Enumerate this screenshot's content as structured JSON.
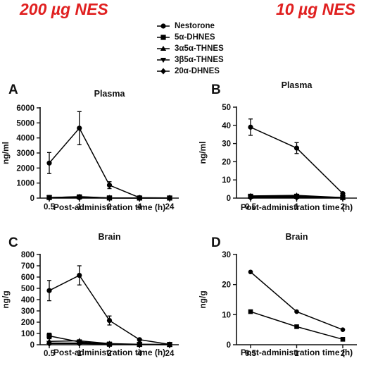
{
  "headers": {
    "left": "200 µg NES",
    "right": "10 µg NES"
  },
  "legend": [
    {
      "label": "Nestorone",
      "marker": "circle"
    },
    {
      "label": "5α-DHNES",
      "marker": "square"
    },
    {
      "label": "3α5α-THNES",
      "marker": "triangle-up"
    },
    {
      "label": "3β5α-THNES",
      "marker": "triangle-down"
    },
    {
      "label": "20α-DHNES",
      "marker": "diamond"
    }
  ],
  "colors": {
    "series": "#000000",
    "dose_header": "#e02020"
  },
  "chart_data": [
    {
      "panel": "A",
      "type": "line",
      "title": "Plasma",
      "xlabel": "Post-administration time (h)",
      "ylabel": "ng/ml",
      "categories": [
        "0.5",
        "1",
        "2",
        "4",
        "24"
      ],
      "yticks": [
        0,
        1000,
        2000,
        3000,
        4000,
        5000,
        6000
      ],
      "ylim": [
        0,
        6000
      ],
      "series": [
        {
          "name": "Nestorone",
          "marker": "circle",
          "values": [
            2330,
            4650,
            860,
            30,
            10
          ],
          "errors": [
            700,
            1100,
            230,
            10,
            0
          ]
        },
        {
          "name": "5α-DHNES",
          "marker": "square",
          "values": [
            40,
            80,
            10,
            5,
            5
          ],
          "errors": [
            0,
            0,
            0,
            0,
            0
          ]
        },
        {
          "name": "3α5α-THNES",
          "marker": "triangle-up",
          "values": [
            30,
            100,
            10,
            5,
            5
          ],
          "errors": [
            0,
            0,
            0,
            0,
            0
          ]
        },
        {
          "name": "3β5α-THNES",
          "marker": "triangle-down",
          "values": [
            20,
            40,
            5,
            5,
            5
          ],
          "errors": [
            0,
            0,
            0,
            0,
            0
          ]
        },
        {
          "name": "20α-DHNES",
          "marker": "diamond",
          "values": [
            10,
            20,
            5,
            5,
            5
          ],
          "errors": [
            0,
            0,
            0,
            0,
            0
          ]
        }
      ]
    },
    {
      "panel": "B",
      "type": "line",
      "title": "Plasma",
      "xlabel": "Post-administration time (h)",
      "ylabel": "ng/ml",
      "categories": [
        "0.5",
        "1",
        "2"
      ],
      "yticks": [
        0,
        10,
        20,
        30,
        40,
        50
      ],
      "ylim": [
        0,
        50
      ],
      "series": [
        {
          "name": "Nestorone",
          "marker": "circle",
          "values": [
            39,
            27.5,
            2.5
          ],
          "errors": [
            4.5,
            3,
            0
          ]
        },
        {
          "name": "5α-DHNES",
          "marker": "square",
          "values": [
            1,
            1,
            0.3
          ],
          "errors": [
            0,
            0,
            0
          ]
        },
        {
          "name": "3α5α-THNES",
          "marker": "triangle-up",
          "values": [
            1.2,
            1.5,
            0.3
          ],
          "errors": [
            0,
            0,
            0
          ]
        },
        {
          "name": "3β5α-THNES",
          "marker": "triangle-down",
          "values": [
            0.5,
            0.5,
            0.2
          ],
          "errors": [
            0,
            0,
            0
          ]
        },
        {
          "name": "20α-DHNES",
          "marker": "diamond",
          "values": [
            0.3,
            0.3,
            0.1
          ],
          "errors": [
            0,
            0,
            0
          ]
        }
      ]
    },
    {
      "panel": "C",
      "type": "line",
      "title": "Brain",
      "xlabel": "Post-administration time (h)",
      "ylabel": "ng/g",
      "categories": [
        "0.5",
        "1",
        "2",
        "4",
        "24"
      ],
      "yticks": [
        0,
        100,
        200,
        300,
        400,
        500,
        600,
        700,
        800
      ],
      "ylim": [
        0,
        800
      ],
      "series": [
        {
          "name": "Nestorone",
          "marker": "circle",
          "values": [
            480,
            615,
            215,
            45,
            3
          ],
          "errors": [
            90,
            85,
            40,
            5,
            0
          ]
        },
        {
          "name": "5α-DHNES",
          "marker": "square",
          "values": [
            78,
            25,
            5,
            3,
            2
          ],
          "errors": [
            25,
            0,
            0,
            0,
            0
          ]
        },
        {
          "name": "3α5α-THNES",
          "marker": "triangle-up",
          "values": [
            30,
            35,
            10,
            4,
            2
          ],
          "errors": [
            0,
            0,
            0,
            0,
            0
          ]
        },
        {
          "name": "3β5α-THNES",
          "marker": "triangle-down",
          "values": [
            15,
            15,
            5,
            2,
            1
          ],
          "errors": [
            0,
            0,
            0,
            0,
            0
          ]
        },
        {
          "name": "20α-DHNES",
          "marker": "diamond",
          "values": [
            10,
            10,
            5,
            2,
            1
          ],
          "errors": [
            0,
            0,
            0,
            0,
            0
          ]
        }
      ]
    },
    {
      "panel": "D",
      "type": "line",
      "title": "Brain",
      "xlabel": "Post-administration time (h)",
      "ylabel": "ng/g",
      "categories": [
        "0.5",
        "1",
        "2"
      ],
      "yticks": [
        0,
        10,
        20,
        30
      ],
      "ylim": [
        0,
        30
      ],
      "series": [
        {
          "name": "Nestorone",
          "marker": "circle",
          "values": [
            24.2,
            11,
            5
          ],
          "errors": [
            0,
            0,
            0
          ]
        },
        {
          "name": "5α-DHNES",
          "marker": "square",
          "values": [
            11,
            6,
            1.8
          ],
          "errors": [
            0,
            0,
            0
          ]
        }
      ]
    }
  ]
}
